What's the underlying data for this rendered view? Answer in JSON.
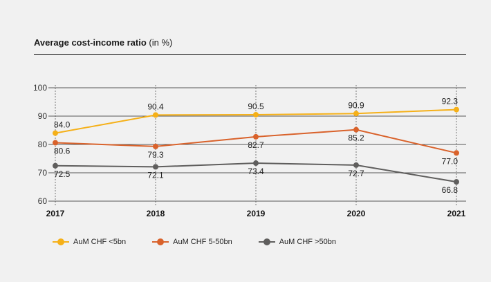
{
  "chart_data": {
    "type": "line",
    "title": "Average cost-income ratio",
    "title_unit": " (in %)",
    "categories": [
      "2017",
      "2018",
      "2019",
      "2020",
      "2021"
    ],
    "ylim": [
      60,
      100
    ],
    "yticks": [
      60,
      70,
      80,
      90,
      100
    ],
    "grid": true,
    "legend_position": "bottom",
    "series": [
      {
        "name": "AuM CHF <5bn",
        "color": "#f5b018",
        "values": [
          84.0,
          90.4,
          90.5,
          90.9,
          92.3
        ],
        "labels": [
          "84.0",
          "90.4",
          "90.5",
          "90.9",
          "92.3"
        ]
      },
      {
        "name": "AuM CHF 5-50bn",
        "color": "#d9622b",
        "values": [
          80.6,
          79.3,
          82.7,
          85.2,
          77.0
        ],
        "labels": [
          "80.6",
          "79.3",
          "82.7",
          "85.2",
          "77.0"
        ]
      },
      {
        "name": "AuM CHF >50bn",
        "color": "#5f5e5d",
        "values": [
          72.5,
          72.1,
          73.4,
          72.7,
          66.8
        ],
        "labels": [
          "72.5",
          "72.1",
          "73.4",
          "72.7",
          "66.8"
        ]
      }
    ]
  }
}
